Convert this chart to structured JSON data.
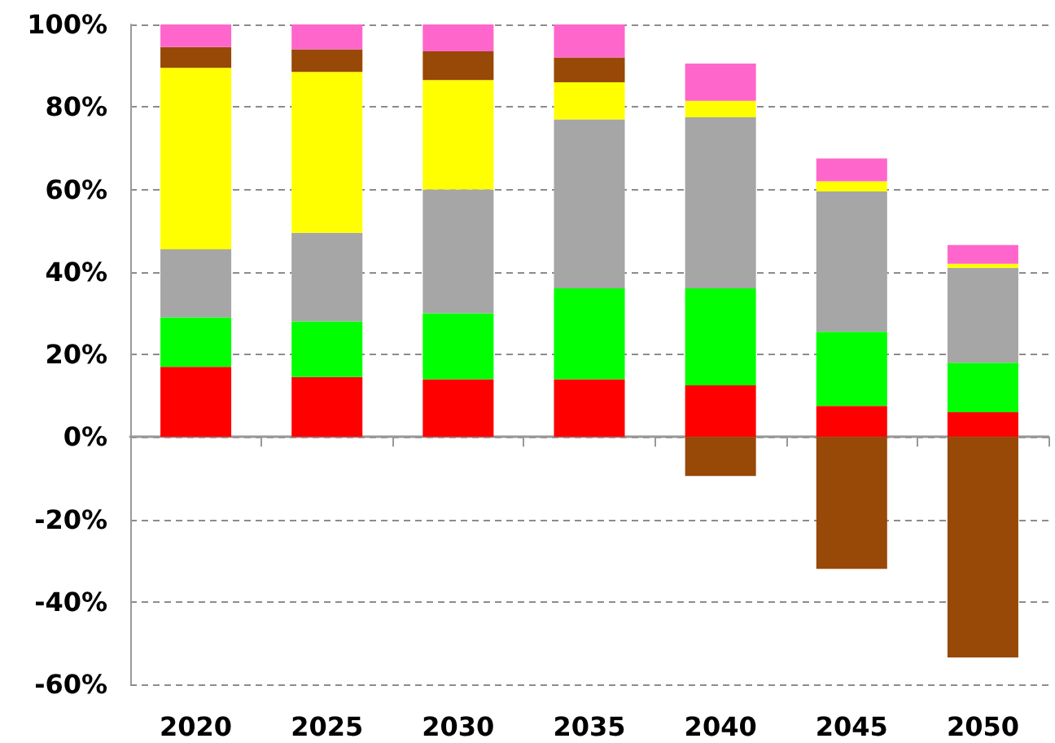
{
  "chart_data": {
    "type": "bar",
    "stacked": true,
    "categories": [
      "2020",
      "2025",
      "2030",
      "2035",
      "2040",
      "2045",
      "2050"
    ],
    "series": [
      {
        "color": "#ff0000",
        "values": [
          17,
          14.5,
          14,
          14,
          12.5,
          7.5,
          6
        ]
      },
      {
        "color": "#00ff00",
        "values": [
          12,
          13.5,
          16,
          22,
          23.5,
          18,
          12
        ]
      },
      {
        "color": "#a6a6a6",
        "values": [
          16.5,
          21.5,
          30,
          41,
          41.5,
          34,
          23
        ]
      },
      {
        "color": "#ffff00",
        "values": [
          44,
          39,
          26.5,
          9,
          4,
          2.5,
          1
        ]
      },
      {
        "color": "#984807",
        "values": [
          5,
          5.5,
          7,
          6,
          -9.5,
          -32,
          -53.5
        ]
      },
      {
        "color": "#ff66cc",
        "values": [
          5.5,
          6,
          6.5,
          8,
          9,
          5.5,
          4.5
        ]
      }
    ],
    "ylim": [
      -60,
      100
    ],
    "yticks": [
      {
        "value": -60,
        "label": "-60%"
      },
      {
        "value": -40,
        "label": "-40%"
      },
      {
        "value": -20,
        "label": "-20%"
      },
      {
        "value": 0,
        "label": "0%"
      },
      {
        "value": 20,
        "label": "20%"
      },
      {
        "value": 40,
        "label": "40%"
      },
      {
        "value": 60,
        "label": "60%"
      },
      {
        "value": 80,
        "label": "80%"
      },
      {
        "value": 100,
        "label": "100%"
      }
    ],
    "grid": "y"
  }
}
